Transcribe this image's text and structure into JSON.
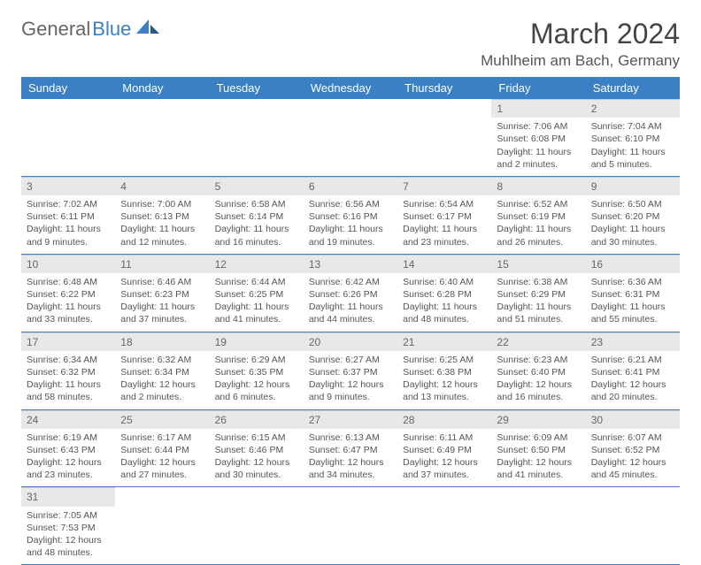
{
  "logo": {
    "general": "General",
    "blue": "Blue"
  },
  "header": {
    "title": "March 2024",
    "location": "Muhlheim am Bach, Germany"
  },
  "colors": {
    "header_bg": "#3b7fc4",
    "daynum_bg": "#e8e8e8",
    "border": "#3b7fc4",
    "text": "#555"
  },
  "weekdays": [
    "Sunday",
    "Monday",
    "Tuesday",
    "Wednesday",
    "Thursday",
    "Friday",
    "Saturday"
  ],
  "weeks": [
    [
      {
        "empty": true
      },
      {
        "empty": true
      },
      {
        "empty": true
      },
      {
        "empty": true
      },
      {
        "empty": true
      },
      {
        "num": "1",
        "sunrise": "Sunrise: 7:06 AM",
        "sunset": "Sunset: 6:08 PM",
        "daylight": "Daylight: 11 hours and 2 minutes."
      },
      {
        "num": "2",
        "sunrise": "Sunrise: 7:04 AM",
        "sunset": "Sunset: 6:10 PM",
        "daylight": "Daylight: 11 hours and 5 minutes."
      }
    ],
    [
      {
        "num": "3",
        "sunrise": "Sunrise: 7:02 AM",
        "sunset": "Sunset: 6:11 PM",
        "daylight": "Daylight: 11 hours and 9 minutes."
      },
      {
        "num": "4",
        "sunrise": "Sunrise: 7:00 AM",
        "sunset": "Sunset: 6:13 PM",
        "daylight": "Daylight: 11 hours and 12 minutes."
      },
      {
        "num": "5",
        "sunrise": "Sunrise: 6:58 AM",
        "sunset": "Sunset: 6:14 PM",
        "daylight": "Daylight: 11 hours and 16 minutes."
      },
      {
        "num": "6",
        "sunrise": "Sunrise: 6:56 AM",
        "sunset": "Sunset: 6:16 PM",
        "daylight": "Daylight: 11 hours and 19 minutes."
      },
      {
        "num": "7",
        "sunrise": "Sunrise: 6:54 AM",
        "sunset": "Sunset: 6:17 PM",
        "daylight": "Daylight: 11 hours and 23 minutes."
      },
      {
        "num": "8",
        "sunrise": "Sunrise: 6:52 AM",
        "sunset": "Sunset: 6:19 PM",
        "daylight": "Daylight: 11 hours and 26 minutes."
      },
      {
        "num": "9",
        "sunrise": "Sunrise: 6:50 AM",
        "sunset": "Sunset: 6:20 PM",
        "daylight": "Daylight: 11 hours and 30 minutes."
      }
    ],
    [
      {
        "num": "10",
        "sunrise": "Sunrise: 6:48 AM",
        "sunset": "Sunset: 6:22 PM",
        "daylight": "Daylight: 11 hours and 33 minutes."
      },
      {
        "num": "11",
        "sunrise": "Sunrise: 6:46 AM",
        "sunset": "Sunset: 6:23 PM",
        "daylight": "Daylight: 11 hours and 37 minutes."
      },
      {
        "num": "12",
        "sunrise": "Sunrise: 6:44 AM",
        "sunset": "Sunset: 6:25 PM",
        "daylight": "Daylight: 11 hours and 41 minutes."
      },
      {
        "num": "13",
        "sunrise": "Sunrise: 6:42 AM",
        "sunset": "Sunset: 6:26 PM",
        "daylight": "Daylight: 11 hours and 44 minutes."
      },
      {
        "num": "14",
        "sunrise": "Sunrise: 6:40 AM",
        "sunset": "Sunset: 6:28 PM",
        "daylight": "Daylight: 11 hours and 48 minutes."
      },
      {
        "num": "15",
        "sunrise": "Sunrise: 6:38 AM",
        "sunset": "Sunset: 6:29 PM",
        "daylight": "Daylight: 11 hours and 51 minutes."
      },
      {
        "num": "16",
        "sunrise": "Sunrise: 6:36 AM",
        "sunset": "Sunset: 6:31 PM",
        "daylight": "Daylight: 11 hours and 55 minutes."
      }
    ],
    [
      {
        "num": "17",
        "sunrise": "Sunrise: 6:34 AM",
        "sunset": "Sunset: 6:32 PM",
        "daylight": "Daylight: 11 hours and 58 minutes."
      },
      {
        "num": "18",
        "sunrise": "Sunrise: 6:32 AM",
        "sunset": "Sunset: 6:34 PM",
        "daylight": "Daylight: 12 hours and 2 minutes."
      },
      {
        "num": "19",
        "sunrise": "Sunrise: 6:29 AM",
        "sunset": "Sunset: 6:35 PM",
        "daylight": "Daylight: 12 hours and 6 minutes."
      },
      {
        "num": "20",
        "sunrise": "Sunrise: 6:27 AM",
        "sunset": "Sunset: 6:37 PM",
        "daylight": "Daylight: 12 hours and 9 minutes."
      },
      {
        "num": "21",
        "sunrise": "Sunrise: 6:25 AM",
        "sunset": "Sunset: 6:38 PM",
        "daylight": "Daylight: 12 hours and 13 minutes."
      },
      {
        "num": "22",
        "sunrise": "Sunrise: 6:23 AM",
        "sunset": "Sunset: 6:40 PM",
        "daylight": "Daylight: 12 hours and 16 minutes."
      },
      {
        "num": "23",
        "sunrise": "Sunrise: 6:21 AM",
        "sunset": "Sunset: 6:41 PM",
        "daylight": "Daylight: 12 hours and 20 minutes."
      }
    ],
    [
      {
        "num": "24",
        "sunrise": "Sunrise: 6:19 AM",
        "sunset": "Sunset: 6:43 PM",
        "daylight": "Daylight: 12 hours and 23 minutes."
      },
      {
        "num": "25",
        "sunrise": "Sunrise: 6:17 AM",
        "sunset": "Sunset: 6:44 PM",
        "daylight": "Daylight: 12 hours and 27 minutes."
      },
      {
        "num": "26",
        "sunrise": "Sunrise: 6:15 AM",
        "sunset": "Sunset: 6:46 PM",
        "daylight": "Daylight: 12 hours and 30 minutes."
      },
      {
        "num": "27",
        "sunrise": "Sunrise: 6:13 AM",
        "sunset": "Sunset: 6:47 PM",
        "daylight": "Daylight: 12 hours and 34 minutes."
      },
      {
        "num": "28",
        "sunrise": "Sunrise: 6:11 AM",
        "sunset": "Sunset: 6:49 PM",
        "daylight": "Daylight: 12 hours and 37 minutes."
      },
      {
        "num": "29",
        "sunrise": "Sunrise: 6:09 AM",
        "sunset": "Sunset: 6:50 PM",
        "daylight": "Daylight: 12 hours and 41 minutes."
      },
      {
        "num": "30",
        "sunrise": "Sunrise: 6:07 AM",
        "sunset": "Sunset: 6:52 PM",
        "daylight": "Daylight: 12 hours and 45 minutes."
      }
    ],
    [
      {
        "num": "31",
        "sunrise": "Sunrise: 7:05 AM",
        "sunset": "Sunset: 7:53 PM",
        "daylight": "Daylight: 12 hours and 48 minutes."
      },
      {
        "empty": true
      },
      {
        "empty": true
      },
      {
        "empty": true
      },
      {
        "empty": true
      },
      {
        "empty": true
      },
      {
        "empty": true
      }
    ]
  ]
}
